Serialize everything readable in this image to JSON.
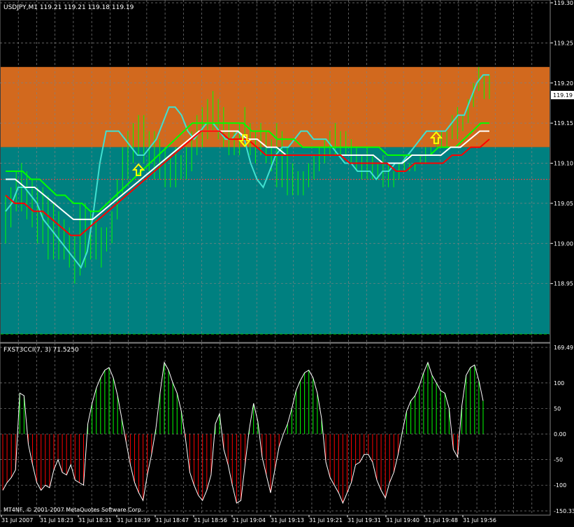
{
  "colors": {
    "background": "#000000",
    "upper_zone": "#D2691E",
    "lower_zone": "#008080",
    "grid": "#808080",
    "text": "#FFFFFF",
    "candles": "#00FF00",
    "fast_line": "#40E0D0",
    "upper_band": "#00FF00",
    "mid_band": "#FFFFFF",
    "lower_band": "#FF0000",
    "arrows": "#FFFF00",
    "cci_line": "#FFFFFF",
    "cci_positive": "#00FF00",
    "cci_negative": "#FF0000"
  },
  "chart_data": [
    {
      "type": "line",
      "title": "USDJPY,M1  119.21 119.21 119.18 119.19",
      "current_price_label": "119.19",
      "ylim": [
        118.9,
        119.3
      ],
      "zones": [
        {
          "from": 119.12,
          "to": 119.22,
          "color": "upper_zone"
        },
        {
          "from": 118.9,
          "to": 119.12,
          "color": "lower_zone"
        }
      ],
      "red_dotted_level": 119.08,
      "green_dashed_level": 118.9,
      "y_ticks": [
        {
          "value": 119.3,
          "label": "119.30"
        },
        {
          "value": 119.25,
          "label": "119.25"
        },
        {
          "value": 119.2,
          "label": "119.20"
        },
        {
          "value": 119.15,
          "label": "119.15"
        },
        {
          "value": 119.1,
          "label": "119.10"
        },
        {
          "value": 119.05,
          "label": "119.05"
        },
        {
          "value": 119.0,
          "label": "119.00"
        },
        {
          "value": 118.95,
          "label": "118.95"
        }
      ],
      "x_labels": [
        "31 Jul 2007",
        "31 Jul 18:23",
        "31 Jul 18:31",
        "31 Jul 18:39",
        "31 Jul 18:47",
        "31 Jul 18:56",
        "31 Jul 19:04",
        "31 Jul 19:13",
        "31 Jul 19:21",
        "31 Jul 19:31",
        "31 Jul 19:40",
        "31 Jul 19:48",
        "31 Jul 19:56"
      ],
      "bars_high": [
        119.06,
        119.07,
        119.09,
        119.1,
        119.09,
        119.08,
        119.07,
        119.07,
        119.06,
        119.05,
        119.04,
        119.03,
        119.02,
        119.01,
        119.05,
        119.05,
        119.04,
        119.03,
        119.02,
        119.02,
        119.04,
        119.08,
        119.12,
        119.14,
        119.15,
        119.16,
        119.16,
        119.14,
        119.14,
        119.13,
        119.12,
        119.11,
        119.12,
        119.11,
        119.12,
        119.14,
        119.16,
        119.17,
        119.18,
        119.19,
        119.18,
        119.17,
        119.15,
        119.14,
        119.15,
        119.17,
        119.15,
        119.14,
        119.15,
        119.14,
        119.13,
        119.15,
        119.14,
        119.12,
        119.1,
        119.09,
        119.09,
        119.1,
        119.11,
        119.12,
        119.13,
        119.14,
        119.15,
        119.14,
        119.14,
        119.13,
        119.12,
        119.11,
        119.12,
        119.11,
        119.1,
        119.11,
        119.1,
        119.09,
        119.1,
        119.11,
        119.1,
        119.1,
        119.11,
        119.12,
        119.12,
        119.13,
        119.14,
        119.14,
        119.16,
        119.17,
        119.16,
        119.18,
        119.2,
        119.22,
        119.21,
        119.21
      ],
      "bars_low": [
        119.0,
        119.02,
        119.04,
        119.04,
        119.03,
        119.02,
        119.0,
        119.0,
        118.98,
        118.98,
        118.98,
        118.98,
        118.97,
        118.95,
        118.96,
        118.97,
        118.98,
        118.98,
        118.97,
        118.99,
        119.0,
        119.03,
        119.06,
        119.08,
        119.1,
        119.11,
        119.1,
        119.09,
        119.08,
        119.08,
        119.07,
        119.07,
        119.07,
        119.08,
        119.08,
        119.09,
        119.11,
        119.12,
        119.13,
        119.14,
        119.13,
        119.12,
        119.11,
        119.11,
        119.11,
        119.12,
        119.11,
        119.1,
        119.11,
        119.1,
        119.09,
        119.07,
        119.07,
        119.06,
        119.06,
        119.06,
        119.06,
        119.07,
        119.08,
        119.09,
        119.1,
        119.11,
        119.11,
        119.11,
        119.11,
        119.1,
        119.09,
        119.08,
        119.08,
        119.08,
        119.08,
        119.07,
        119.07,
        119.07,
        119.08,
        119.09,
        119.09,
        119.09,
        119.1,
        119.1,
        119.11,
        119.12,
        119.12,
        119.12,
        119.13,
        119.13,
        119.14,
        119.15,
        119.17,
        119.19,
        119.18,
        119.18
      ],
      "series": [
        {
          "color": "fast_line",
          "values": [
            119.04,
            119.05,
            119.07,
            119.07,
            119.06,
            119.05,
            119.03,
            119.02,
            119.01,
            119.0,
            118.99,
            118.98,
            118.97,
            118.99,
            119.04,
            119.1,
            119.14,
            119.14,
            119.14,
            119.13,
            119.12,
            119.11,
            119.11,
            119.12,
            119.13,
            119.15,
            119.17,
            119.17,
            119.16,
            119.14,
            119.13,
            119.14,
            119.15,
            119.15,
            119.14,
            119.13,
            119.13,
            119.14,
            119.13,
            119.1,
            119.08,
            119.07,
            119.09,
            119.11,
            119.12,
            119.12,
            119.13,
            119.14,
            119.14,
            119.13,
            119.13,
            119.13,
            119.12,
            119.11,
            119.1,
            119.1,
            119.09,
            119.09,
            119.09,
            119.08,
            119.09,
            119.09,
            119.1,
            119.1,
            119.11,
            119.12,
            119.13,
            119.14,
            119.14,
            119.14,
            119.14,
            119.15,
            119.16,
            119.16,
            119.18,
            119.2,
            119.21,
            119.21
          ]
        },
        {
          "color": "upper_band",
          "values": [
            119.09,
            119.09,
            119.09,
            119.08,
            119.08,
            119.07,
            119.06,
            119.06,
            119.05,
            119.05,
            119.04,
            119.04,
            119.05,
            119.06,
            119.07,
            119.08,
            119.09,
            119.1,
            119.11,
            119.12,
            119.13,
            119.14,
            119.15,
            119.15,
            119.15,
            119.15,
            119.15,
            119.15,
            119.15,
            119.14,
            119.14,
            119.14,
            119.13,
            119.13,
            119.13,
            119.12,
            119.12,
            119.12,
            119.12,
            119.12,
            119.12,
            119.12,
            119.12,
            119.12,
            119.12,
            119.11,
            119.11,
            119.11,
            119.11,
            119.11,
            119.11,
            119.12,
            119.12,
            119.12,
            119.13,
            119.14,
            119.15,
            119.15
          ]
        },
        {
          "color": "mid_band",
          "values": [
            119.08,
            119.08,
            119.07,
            119.07,
            119.06,
            119.05,
            119.04,
            119.03,
            119.03,
            119.03,
            119.04,
            119.05,
            119.06,
            119.07,
            119.08,
            119.09,
            119.1,
            119.11,
            119.12,
            119.13,
            119.14,
            119.14,
            119.14,
            119.14,
            119.14,
            119.13,
            119.13,
            119.12,
            119.12,
            119.11,
            119.11,
            119.11,
            119.11,
            119.11,
            119.11,
            119.11,
            119.11,
            119.11,
            119.11,
            119.1,
            119.1,
            119.1,
            119.11,
            119.11,
            119.11,
            119.11,
            119.12,
            119.12,
            119.13,
            119.14,
            119.14
          ]
        },
        {
          "color": "lower_band",
          "values": [
            119.06,
            119.05,
            119.05,
            119.04,
            119.04,
            119.03,
            119.02,
            119.01,
            119.01,
            119.02,
            119.03,
            119.04,
            119.05,
            119.06,
            119.07,
            119.08,
            119.09,
            119.1,
            119.11,
            119.12,
            119.13,
            119.14,
            119.14,
            119.14,
            119.13,
            119.13,
            119.13,
            119.12,
            119.11,
            119.11,
            119.11,
            119.11,
            119.11,
            119.11,
            119.11,
            119.11,
            119.11,
            119.1,
            119.1,
            119.1,
            119.1,
            119.1,
            119.09,
            119.09,
            119.1,
            119.1,
            119.1,
            119.1,
            119.11,
            119.11,
            119.12,
            119.12,
            119.13
          ]
        }
      ],
      "arrows": [
        {
          "direction": "up",
          "index": 25,
          "price": 119.09
        },
        {
          "direction": "down",
          "index": 45,
          "price": 119.13
        },
        {
          "direction": "up",
          "index": 81,
          "price": 119.13
        }
      ]
    },
    {
      "type": "bar",
      "title": "FXST3CCI(7, 3) 71.5250",
      "ylim": [
        -150.331,
        169.491
      ],
      "y_ticks": [
        {
          "value": 169.491,
          "label": "169.491"
        },
        {
          "value": 100,
          "label": "100"
        },
        {
          "value": 50,
          "label": "50"
        },
        {
          "value": 0,
          "label": "0.00"
        },
        {
          "value": -50,
          "label": "-50"
        },
        {
          "value": -100,
          "label": "-100"
        },
        {
          "value": -150.331,
          "label": "-150.331"
        }
      ],
      "values": [
        -110,
        -95,
        -85,
        -70,
        80,
        75,
        -20,
        -60,
        -95,
        -110,
        -100,
        -105,
        -70,
        -50,
        -75,
        -80,
        -60,
        -90,
        -95,
        -100,
        20,
        60,
        90,
        110,
        125,
        130,
        110,
        75,
        30,
        -15,
        -60,
        -95,
        -115,
        -130,
        -80,
        -40,
        10,
        80,
        140,
        125,
        100,
        80,
        45,
        -10,
        -75,
        -100,
        -120,
        -130,
        -110,
        -80,
        20,
        40,
        -30,
        -60,
        -100,
        -135,
        -130,
        -60,
        10,
        60,
        25,
        -45,
        -80,
        -115,
        -70,
        -25,
        0,
        20,
        50,
        85,
        105,
        120,
        125,
        110,
        80,
        30,
        -55,
        -85,
        -100,
        -115,
        -135,
        -115,
        -95,
        -60,
        -55,
        -40,
        -40,
        -55,
        -90,
        -110,
        -125,
        -95,
        -75,
        -40,
        5,
        45,
        65,
        75,
        95,
        120,
        140,
        115,
        100,
        85,
        80,
        50,
        -30,
        -45,
        55,
        115,
        130,
        135,
        105,
        65
      ]
    }
  ],
  "footer": {
    "copyright": "MT4NF, © 2001-2007 MetaQuotes Software Corp."
  }
}
